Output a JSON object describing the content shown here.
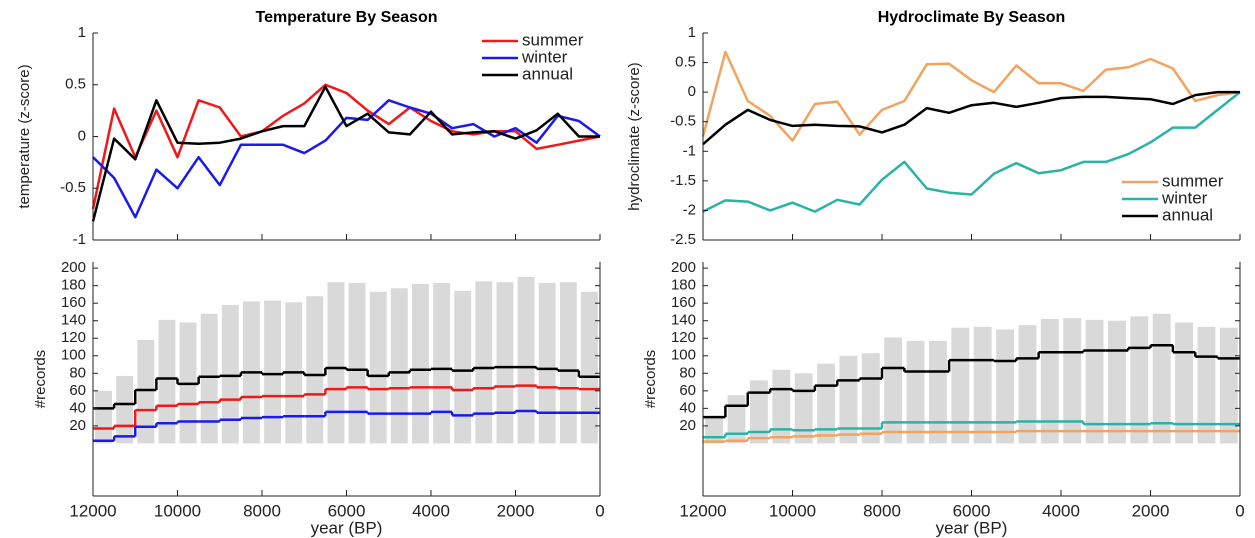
{
  "chart_data": [
    {
      "type": "line",
      "title": "Temperature By Season",
      "ylabel": "temperature (z-score)",
      "x": [
        12000,
        11500,
        11000,
        10500,
        10000,
        9500,
        9000,
        8500,
        8000,
        7500,
        7000,
        6500,
        6000,
        5500,
        5000,
        4500,
        4000,
        3500,
        3000,
        2500,
        2000,
        1500,
        1000,
        500,
        0
      ],
      "xlim": [
        12000,
        0
      ],
      "xticks": [
        12000,
        10000,
        8000,
        6000,
        4000,
        2000,
        0
      ],
      "xtick_labels": false,
      "ylim": [
        -1,
        1
      ],
      "yticks": [
        -1,
        -0.5,
        0,
        0.5,
        1
      ],
      "legend": "northeast",
      "series": [
        {
          "name": "summer",
          "color": "#f01818",
          "values": [
            -0.7,
            0.27,
            -0.2,
            0.25,
            -0.2,
            0.35,
            0.28,
            0,
            0.05,
            0.2,
            0.32,
            0.5,
            0.42,
            0.25,
            0.12,
            0.28,
            0.15,
            0.05,
            0.02,
            0.05,
            0.05,
            -0.12,
            -0.08,
            -0.04,
            0
          ]
        },
        {
          "name": "winter",
          "color": "#1a1aee",
          "values": [
            -0.2,
            -0.4,
            -0.78,
            -0.32,
            -0.5,
            -0.2,
            -0.47,
            -0.08,
            -0.08,
            -0.08,
            -0.16,
            -0.04,
            0.18,
            0.16,
            0.35,
            0.28,
            0.22,
            0.08,
            0.12,
            0,
            0.08,
            -0.06,
            0.2,
            0.15,
            0
          ]
        },
        {
          "name": "annual",
          "color": "#000000",
          "values": [
            -0.82,
            -0.02,
            -0.22,
            0.35,
            -0.06,
            -0.07,
            -0.06,
            -0.02,
            0.05,
            0.1,
            0.1,
            0.48,
            0.1,
            0.22,
            0.04,
            0.02,
            0.24,
            0.02,
            0.04,
            0.05,
            -0.02,
            0.06,
            0.22,
            0,
            0
          ]
        }
      ]
    },
    {
      "type": "histogram",
      "ylabel": "#records",
      "xlabel": "year (BP)",
      "bins": [
        12000,
        11500,
        11000,
        10500,
        10000,
        9500,
        9000,
        8500,
        8000,
        7500,
        7000,
        6500,
        6000,
        5500,
        5000,
        4500,
        4000,
        3500,
        3000,
        2500,
        2000,
        1500,
        1000,
        500,
        0
      ],
      "values": [
        60,
        77,
        118,
        141,
        138,
        148,
        158,
        162,
        163,
        161,
        168,
        184,
        183,
        173,
        177,
        182,
        183,
        174,
        185,
        184,
        190,
        183,
        184,
        173
      ],
      "color": "#d9d9d9",
      "xlim": [
        12000,
        0
      ],
      "xticks": [
        12000,
        10000,
        8000,
        6000,
        4000,
        2000,
        0
      ],
      "ylim": [
        -60,
        207
      ],
      "yticks": [
        20,
        40,
        60,
        80,
        100,
        120,
        140,
        160,
        180,
        200
      ],
      "series": [
        {
          "color": "#f01818",
          "values": [
            17,
            20,
            38,
            43,
            45,
            47,
            50,
            53,
            54,
            54,
            56,
            62,
            64,
            62,
            63,
            64,
            64,
            61,
            63,
            65,
            66,
            64,
            63,
            62
          ]
        },
        {
          "color": "#1a1aee",
          "values": [
            3,
            8,
            19,
            23,
            25,
            25,
            27,
            29,
            30,
            31,
            31,
            36,
            36,
            34,
            34,
            34,
            36,
            32,
            34,
            35,
            37,
            35,
            35,
            35
          ]
        },
        {
          "color": "#000000",
          "values": [
            40,
            45,
            61,
            74,
            68,
            76,
            77,
            81,
            79,
            81,
            78,
            86,
            84,
            77,
            81,
            84,
            85,
            83,
            86,
            87,
            87,
            85,
            83,
            76
          ]
        }
      ]
    },
    {
      "type": "line",
      "title": "Hydroclimate By Season",
      "ylabel": "hydroclimate (z-score)",
      "x": [
        12000,
        11500,
        11000,
        10500,
        10000,
        9500,
        9000,
        8500,
        8000,
        7500,
        7000,
        6500,
        6000,
        5500,
        5000,
        4500,
        4000,
        3500,
        3000,
        2500,
        2000,
        1500,
        1000,
        500,
        0
      ],
      "xlim": [
        12000,
        0
      ],
      "xticks": [
        12000,
        10000,
        8000,
        6000,
        4000,
        2000,
        0
      ],
      "xtick_labels": false,
      "ylim": [
        -2.5,
        1
      ],
      "yticks": [
        -2.5,
        -2,
        -1.5,
        -1,
        -0.5,
        0,
        0.5,
        1
      ],
      "legend": "southeast",
      "series": [
        {
          "name": "summer",
          "color": "#f2a35f",
          "values": [
            -0.75,
            0.68,
            -0.15,
            -0.4,
            -0.82,
            -0.2,
            -0.16,
            -0.72,
            -0.3,
            -0.15,
            0.47,
            0.48,
            0.2,
            0,
            0.45,
            0.15,
            0.15,
            0.02,
            0.38,
            0.42,
            0.56,
            0.4,
            -0.15,
            -0.05,
            0
          ]
        },
        {
          "name": "winter",
          "color": "#2ab3a6",
          "values": [
            -2.02,
            -1.83,
            -1.85,
            -2,
            -1.87,
            -2.02,
            -1.82,
            -1.9,
            -1.48,
            -1.18,
            -1.63,
            -1.7,
            -1.73,
            -1.38,
            -1.2,
            -1.37,
            -1.32,
            -1.18,
            -1.18,
            -1.05,
            -0.85,
            -0.6,
            -0.6,
            -0.3,
            0
          ]
        },
        {
          "name": "annual",
          "color": "#000000",
          "values": [
            -0.88,
            -0.55,
            -0.3,
            -0.47,
            -0.57,
            -0.55,
            -0.57,
            -0.58,
            -0.68,
            -0.55,
            -0.27,
            -0.35,
            -0.22,
            -0.18,
            -0.25,
            -0.18,
            -0.1,
            -0.08,
            -0.08,
            -0.1,
            -0.12,
            -0.2,
            -0.05,
            0,
            0
          ]
        }
      ]
    },
    {
      "type": "histogram",
      "ylabel": "#records",
      "xlabel": "year (BP)",
      "bins": [
        12000,
        11500,
        11000,
        10500,
        10000,
        9500,
        9000,
        8500,
        8000,
        7500,
        7000,
        6500,
        6000,
        5500,
        5000,
        4500,
        4000,
        3500,
        3000,
        2500,
        2000,
        1500,
        1000,
        500,
        0
      ],
      "values": [
        30,
        55,
        72,
        84,
        80,
        91,
        100,
        103,
        121,
        117,
        117,
        132,
        133,
        130,
        135,
        142,
        143,
        141,
        140,
        145,
        148,
        138,
        133,
        132
      ],
      "color": "#d9d9d9",
      "xlim": [
        12000,
        0
      ],
      "xticks": [
        12000,
        10000,
        8000,
        6000,
        4000,
        2000,
        0
      ],
      "ylim": [
        -60,
        207
      ],
      "yticks": [
        20,
        40,
        60,
        80,
        100,
        120,
        140,
        160,
        180,
        200
      ],
      "series": [
        {
          "color": "#f2a35f",
          "values": [
            2,
            3,
            6,
            7,
            8,
            9,
            10,
            11,
            13,
            13,
            13,
            13,
            13,
            13,
            14,
            14,
            14,
            14,
            14,
            14,
            14,
            14,
            14,
            14
          ]
        },
        {
          "color": "#2ab3a6",
          "values": [
            7,
            11,
            13,
            16,
            15,
            16,
            17,
            17,
            24,
            24,
            24,
            24,
            24,
            24,
            25,
            25,
            25,
            22,
            22,
            22,
            23,
            22,
            22,
            22
          ]
        },
        {
          "color": "#000000",
          "values": [
            30,
            43,
            58,
            62,
            60,
            66,
            72,
            74,
            86,
            82,
            82,
            95,
            95,
            94,
            97,
            104,
            104,
            106,
            106,
            109,
            112,
            104,
            99,
            97
          ]
        }
      ]
    }
  ]
}
